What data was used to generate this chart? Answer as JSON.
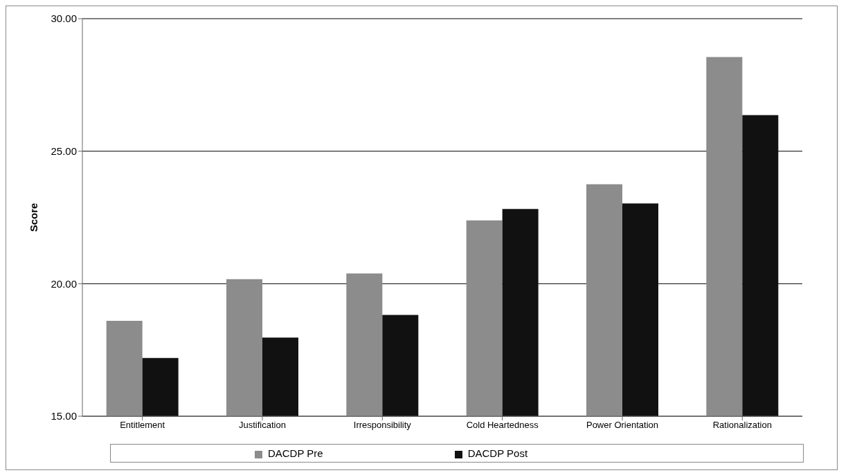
{
  "chart_data": {
    "type": "bar",
    "ylabel": "Score",
    "categories": [
      "Entitlement",
      "Justification",
      "Irresponsibility",
      "Cold Heartedness",
      "Power Orientation",
      "Rationalization"
    ],
    "series": [
      {
        "name": "DACDP Pre",
        "color": "#8c8c8c",
        "values": [
          18.6,
          20.17,
          20.39,
          22.39,
          23.75,
          28.55
        ]
      },
      {
        "name": "DACDP Post",
        "color": "#111111",
        "values": [
          17.2,
          17.97,
          18.82,
          22.82,
          23.03,
          26.36
        ]
      }
    ],
    "ylim": [
      15,
      30
    ],
    "yticks": [
      {
        "value": 15,
        "label": "15.00"
      },
      {
        "value": 20,
        "label": "20.00"
      },
      {
        "value": 25,
        "label": "25.00"
      },
      {
        "value": 30,
        "label": "30.00"
      }
    ],
    "grid": "y",
    "legend": "bottom"
  }
}
